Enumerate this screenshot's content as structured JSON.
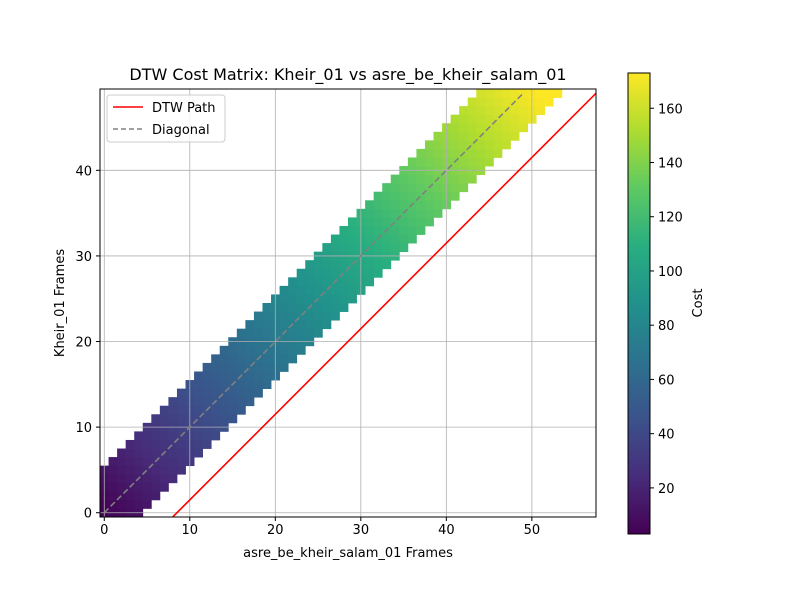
{
  "chart_data": {
    "type": "heatmap",
    "title": "DTW Cost Matrix: Kheir_01 vs asre_be_kheir_salam_01",
    "xlabel": "asre_be_kheir_salam_01 Frames",
    "ylabel": "Kheir_01 Frames",
    "xlim": [
      -0.5,
      57.5
    ],
    "ylim": [
      -0.5,
      49.5
    ],
    "xticks": [
      0,
      10,
      20,
      30,
      40,
      50
    ],
    "yticks": [
      0,
      10,
      20,
      30,
      40
    ],
    "grid": true,
    "colormap": "viridis",
    "colorbar": {
      "label": "Cost",
      "range": [
        3,
        173
      ],
      "ticks": [
        20,
        40,
        60,
        80,
        100,
        120,
        140,
        160
      ]
    },
    "band": {
      "description_rows": "finite cost cells per row y span x from max(0, y-5) to y+4; other cells empty",
      "lower_offset": -5,
      "upper_offset": 4
    },
    "cost_model": {
      "base": 3.5,
      "per_step": 3.4
    },
    "series": [
      {
        "name": "DTW Path",
        "color": "#ff0000",
        "style": "solid",
        "points": [
          [
            8,
            -0.5
          ],
          [
            57.5,
            49
          ]
        ]
      },
      {
        "name": "Diagonal",
        "color": "#808080",
        "style": "dashed",
        "points": [
          [
            0,
            0
          ],
          [
            49,
            49
          ]
        ]
      }
    ],
    "legend": {
      "placement": "top-left",
      "entries": [
        "DTW Path",
        "Diagonal"
      ]
    }
  }
}
